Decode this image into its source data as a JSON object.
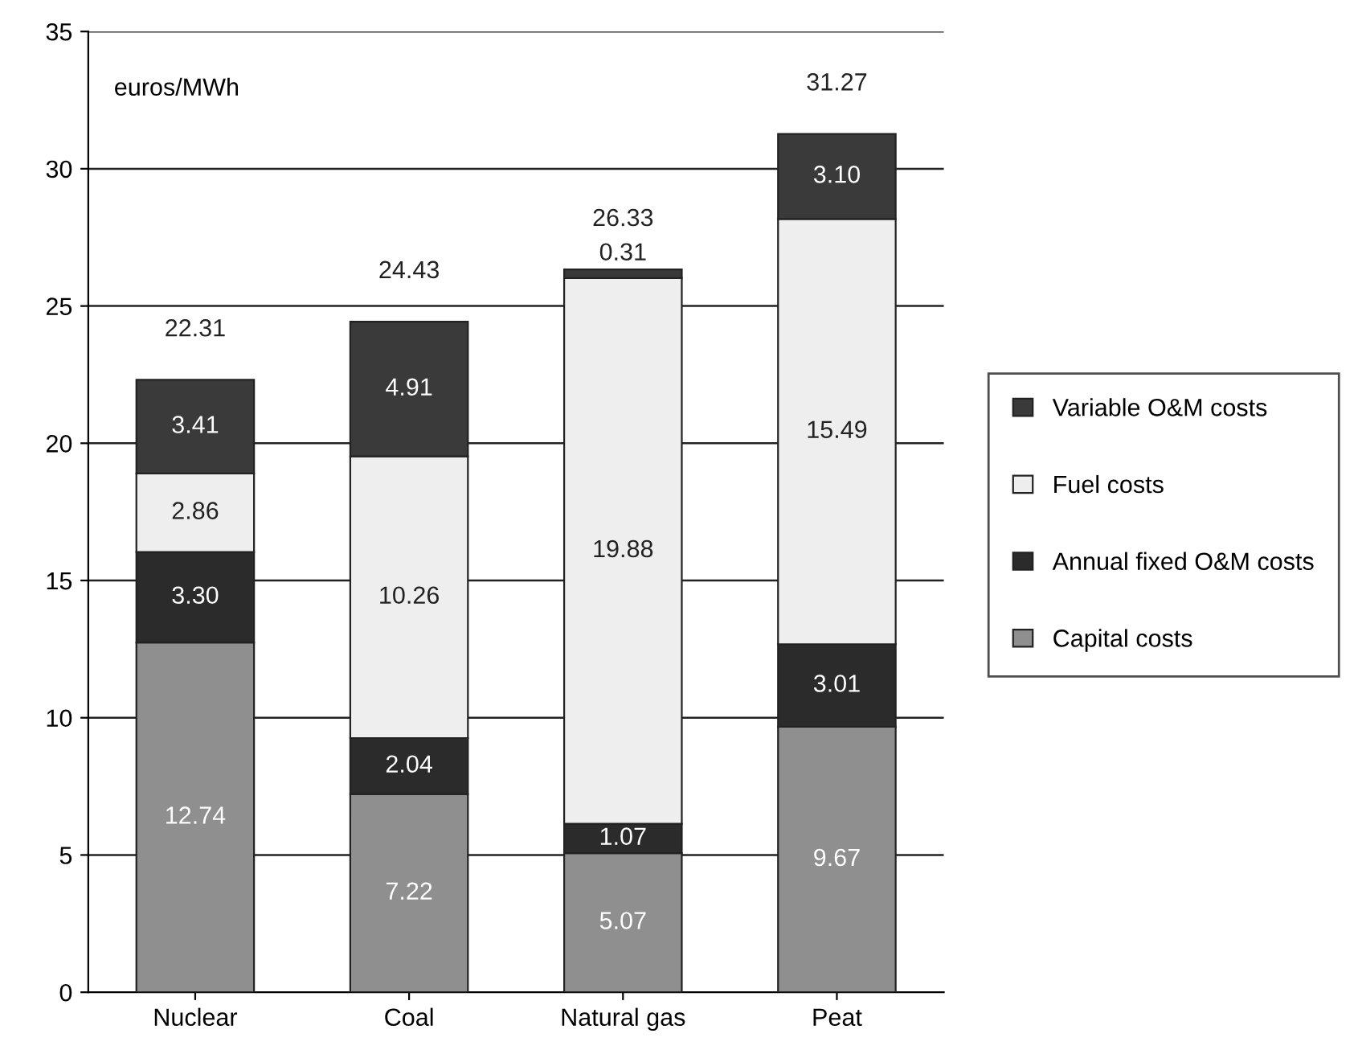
{
  "chart_data": {
    "type": "bar",
    "stacked": true,
    "categories": [
      "Nuclear",
      "Coal",
      "Natural gas",
      "Peat"
    ],
    "series": [
      {
        "name": "Capital costs",
        "color": "#8f8f8f",
        "values": [
          12.74,
          7.22,
          5.07,
          9.67
        ],
        "value_labels": [
          "12.74",
          "7.22",
          "5.07",
          "9.67"
        ]
      },
      {
        "name": "Annual fixed O&M costs",
        "color": "#2b2b2b",
        "values": [
          3.3,
          2.04,
          1.07,
          3.01
        ],
        "value_labels": [
          "3.30",
          "2.04",
          "1.07",
          "3.01"
        ]
      },
      {
        "name": "Fuel costs",
        "color": "#eeeeee",
        "values": [
          2.86,
          10.26,
          19.88,
          15.49
        ],
        "value_labels": [
          "2.86",
          "10.26",
          "19.88",
          "15.49"
        ]
      },
      {
        "name": "Variable O&M costs",
        "color": "#3a3a3a",
        "values": [
          3.41,
          4.91,
          0.31,
          3.1
        ],
        "value_labels": [
          "3.41",
          "4.91",
          "0.31",
          "3.10"
        ]
      }
    ],
    "totals": [
      "22.31",
      "24.43",
      "26.33",
      "31.27"
    ],
    "annotations": [
      "euros/MWh"
    ],
    "ylim": [
      0,
      35
    ],
    "yticks": [
      0,
      5,
      10,
      15,
      20,
      25,
      30,
      35
    ],
    "grid": "y",
    "legend": "right"
  }
}
